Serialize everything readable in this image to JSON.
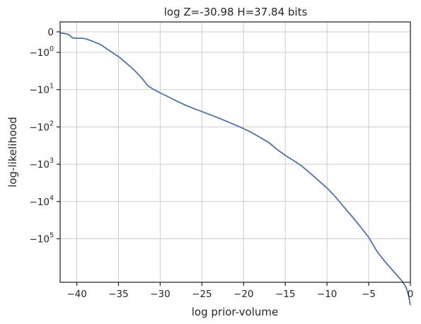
{
  "chart_data": {
    "type": "line",
    "title": "log Z=-30.98 H=37.84 bits",
    "xlabel": "log prior-volume",
    "ylabel": "log-likelihood",
    "xlim": [
      -42,
      0
    ],
    "ylim_symlog": [
      0,
      -300000
    ],
    "yscale": "symlog",
    "grid": true,
    "line_color": "#4c72b0",
    "x_ticks": [
      {
        "value": -40,
        "label": "−40"
      },
      {
        "value": -35,
        "label": "−35"
      },
      {
        "value": -30,
        "label": "−30"
      },
      {
        "value": -25,
        "label": "−25"
      },
      {
        "value": -20,
        "label": "−20"
      },
      {
        "value": -15,
        "label": "−15"
      },
      {
        "value": -10,
        "label": "−10"
      },
      {
        "value": -5,
        "label": "−5"
      },
      {
        "value": 0,
        "label": "0"
      }
    ],
    "y_ticks": [
      {
        "value": 0,
        "base": "0",
        "exp": ""
      },
      {
        "value": -1,
        "base": "−10",
        "exp": "0"
      },
      {
        "value": -10,
        "base": "−10",
        "exp": "1"
      },
      {
        "value": -100,
        "base": "−10",
        "exp": "2"
      },
      {
        "value": -1000,
        "base": "−10",
        "exp": "3"
      },
      {
        "value": -10000,
        "base": "−10",
        "exp": "4"
      },
      {
        "value": -100000,
        "base": "−10",
        "exp": "5"
      }
    ],
    "series": [
      {
        "x": [
          -42,
          -41.5,
          -41,
          -40.5,
          -40,
          -39.5,
          -39,
          -38.5,
          -38,
          -37.5,
          -37,
          -36.5,
          -36,
          -35.5,
          -35,
          -34.5,
          -34,
          -33.5,
          -33,
          -32.5,
          -32,
          -31.5,
          -31,
          -30,
          -29,
          -28,
          -27,
          -26,
          -25,
          -24,
          -23,
          -22,
          -21,
          -20,
          -19,
          -18,
          -17,
          -16,
          -15,
          -14,
          -13,
          -12,
          -11,
          -10,
          -9,
          -8,
          -7,
          -6,
          -5,
          -4,
          -3,
          -2,
          -1,
          -0.5,
          -0.2,
          0
        ],
        "y": [
          -0.05,
          -0.08,
          -0.13,
          -0.3,
          -0.31,
          -0.31,
          -0.33,
          -0.4,
          -0.48,
          -0.56,
          -0.66,
          -0.8,
          -0.94,
          -1.1,
          -1.3,
          -1.6,
          -2.0,
          -2.5,
          -3.2,
          -4.2,
          -5.6,
          -7.8,
          -9.3,
          -12.2,
          -15.7,
          -20.5,
          -25.9,
          -32,
          -38.7,
          -47.1,
          -57.6,
          -71.4,
          -89,
          -111,
          -143,
          -193,
          -260,
          -400,
          -580,
          -800,
          -1130,
          -1750,
          -2770,
          -4350,
          -7450,
          -13800,
          -25300,
          -47300,
          -91700,
          -220000,
          -420000,
          -760000,
          -1360000,
          -2050000,
          -3400000,
          -6000000
        ]
      }
    ]
  }
}
